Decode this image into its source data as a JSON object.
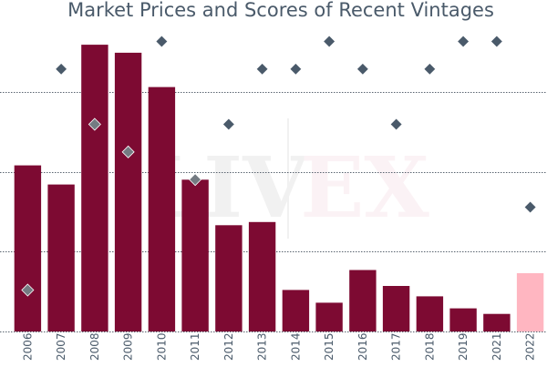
{
  "chart_data": {
    "type": "bar",
    "title": "Market Prices and Scores of Recent Vintages",
    "xlabel": "",
    "ylabel": "",
    "grid": true,
    "categories": [
      "2006",
      "2007",
      "2008",
      "2009",
      "2010",
      "2011",
      "2012",
      "2013",
      "2014",
      "2015",
      "2016",
      "2017",
      "2018",
      "2019",
      "2021",
      "2022"
    ],
    "series": [
      {
        "kind": "bar",
        "values": [
          208,
          184,
          359,
          349,
          306,
          190,
          133,
          137,
          52,
          36,
          77,
          57,
          44,
          29,
          22,
          73
        ],
        "colors": [
          "#7d0a32",
          "#7d0a32",
          "#7d0a32",
          "#7d0a32",
          "#7d0a32",
          "#7d0a32",
          "#7d0a32",
          "#7d0a32",
          "#7d0a32",
          "#7d0a32",
          "#7d0a32",
          "#7d0a32",
          "#7d0a32",
          "#7d0a32",
          "#7d0a32",
          "#ffb6c1"
        ]
      },
      {
        "kind": "scatter",
        "values": [
          91,
          99,
          97,
          96,
          100,
          95,
          97,
          99,
          99,
          100,
          99,
          97,
          99,
          100,
          100,
          94
        ],
        "colors": [
          "#747b82",
          "#4a5a6a",
          "#747b82",
          "#747b82",
          "#4a5a6a",
          "#747b82",
          "#4a5a6a",
          "#4a5a6a",
          "#4a5a6a",
          "#4a5a6a",
          "#4a5a6a",
          "#4a5a6a",
          "#4a5a6a",
          "#4a5a6a",
          "#4a5a6a",
          "#4a5a6a"
        ]
      }
    ],
    "ylim": [
      0,
      415
    ],
    "y2lim": [
      89.5,
      101.5
    ],
    "y_gridlines": [
      0,
      100,
      200,
      300
    ],
    "watermark": {
      "left": "LIV",
      "right": "EX"
    }
  }
}
